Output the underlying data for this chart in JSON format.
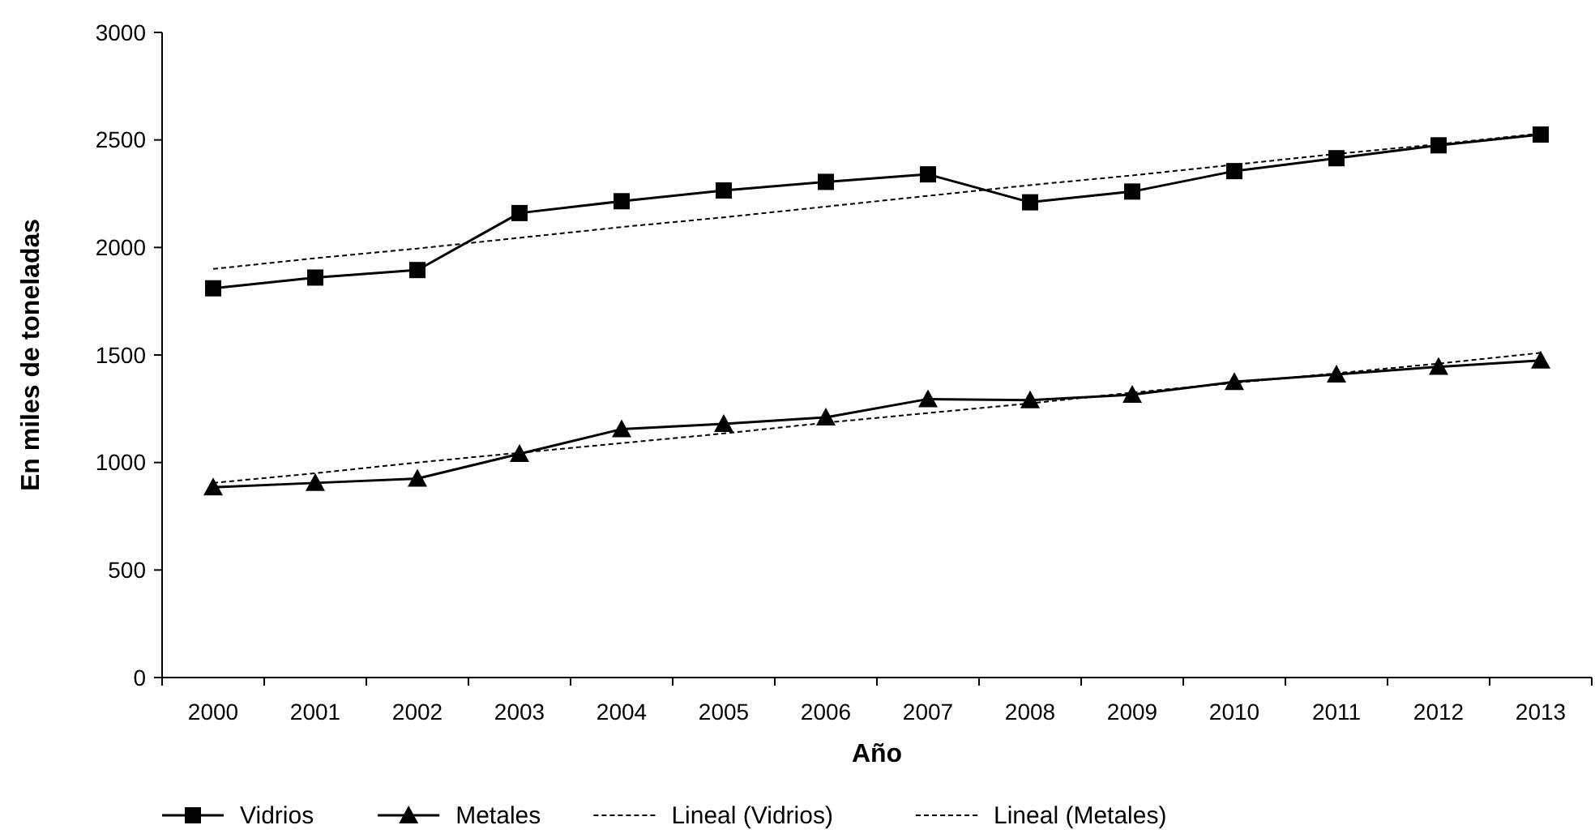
{
  "chart_data": {
    "type": "line",
    "xlabel": "Año",
    "ylabel": "En miles de toneladas",
    "categories": [
      "2000",
      "2001",
      "2002",
      "2003",
      "2004",
      "2005",
      "2006",
      "2007",
      "2008",
      "2009",
      "2010",
      "2011",
      "2012",
      "2013"
    ],
    "ylim": [
      0,
      3000
    ],
    "yticks": [
      0,
      500,
      1000,
      1500,
      2000,
      2500,
      3000
    ],
    "grid": false,
    "legend": "bottom",
    "series": [
      {
        "name": "Vidrios",
        "color": "#000000",
        "marker": "square",
        "line_style": "solid",
        "values": [
          1810,
          1860,
          1895,
          2160,
          2215,
          2265,
          2305,
          2340,
          2210,
          2260,
          2355,
          2415,
          2475,
          2525
        ]
      },
      {
        "name": "Metales",
        "color": "#000000",
        "marker": "triangle",
        "line_style": "solid",
        "values": [
          885,
          905,
          925,
          1040,
          1155,
          1180,
          1210,
          1295,
          1290,
          1315,
          1375,
          1410,
          1445,
          1475
        ]
      },
      {
        "name": "Lineal (Vidrios)",
        "color": "#000000",
        "marker": "none",
        "line_style": "dashed",
        "values": [
          1900,
          1950,
          1995,
          2045,
          2095,
          2140,
          2190,
          2240,
          2290,
          2335,
          2385,
          2435,
          2480,
          2530
        ]
      },
      {
        "name": "Lineal (Metales)",
        "color": "#000000",
        "marker": "none",
        "line_style": "dashed",
        "values": [
          905,
          950,
          1000,
          1045,
          1090,
          1135,
          1185,
          1230,
          1275,
          1325,
          1370,
          1415,
          1460,
          1510
        ]
      }
    ]
  }
}
